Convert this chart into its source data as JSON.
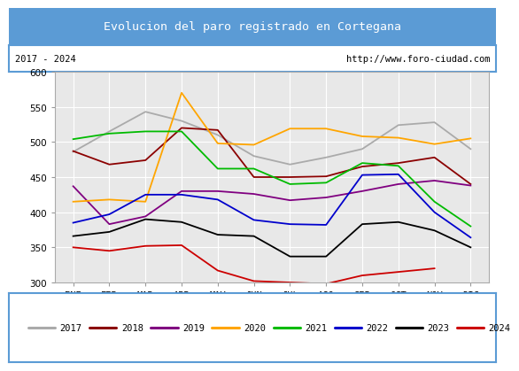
{
  "title": "Evolucion del paro registrado en Cortegana",
  "subtitle_left": "2017 - 2024",
  "subtitle_right": "http://www.foro-ciudad.com",
  "xlabel_months": [
    "ENE",
    "FEB",
    "MAR",
    "ABR",
    "MAY",
    "JUN",
    "JUL",
    "AGO",
    "SEP",
    "OCT",
    "NOV",
    "DIC"
  ],
  "ylim": [
    300,
    600
  ],
  "yticks": [
    300,
    350,
    400,
    450,
    500,
    550,
    600
  ],
  "series": [
    {
      "year": "2017",
      "color": "#aaaaaa",
      "values": [
        486,
        515,
        543,
        530,
        510,
        480,
        468,
        478,
        490,
        524,
        528,
        490
      ]
    },
    {
      "year": "2018",
      "color": "#8b0000",
      "values": [
        487,
        468,
        474,
        520,
        517,
        450,
        450,
        451,
        465,
        470,
        478,
        440
      ]
    },
    {
      "year": "2019",
      "color": "#800080",
      "values": [
        437,
        383,
        394,
        430,
        430,
        426,
        417,
        421,
        430,
        440,
        445,
        438
      ]
    },
    {
      "year": "2020",
      "color": "#ffa500",
      "values": [
        415,
        418,
        415,
        570,
        498,
        496,
        519,
        519,
        508,
        506,
        497,
        505
      ]
    },
    {
      "year": "2021",
      "color": "#00bb00",
      "values": [
        504,
        512,
        515,
        515,
        462,
        462,
        440,
        442,
        470,
        466,
        415,
        380
      ]
    },
    {
      "year": "2022",
      "color": "#0000cc",
      "values": [
        385,
        397,
        425,
        425,
        418,
        389,
        383,
        382,
        453,
        454,
        400,
        364
      ]
    },
    {
      "year": "2023",
      "color": "#000000",
      "values": [
        366,
        372,
        390,
        386,
        368,
        366,
        337,
        337,
        383,
        386,
        374,
        350
      ]
    },
    {
      "year": "2024",
      "color": "#cc0000",
      "values": [
        350,
        345,
        352,
        353,
        317,
        302,
        300,
        298,
        310,
        315,
        320,
        null
      ]
    }
  ],
  "background_color": "#e8e8e8",
  "title_bg": "#5b9bd5",
  "title_color": "#ffffff",
  "border_color": "#5b9bd5",
  "grid_color": "#ffffff"
}
